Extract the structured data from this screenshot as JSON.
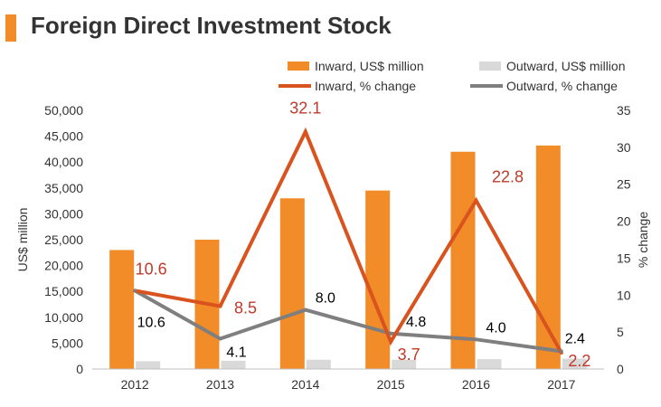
{
  "header": {
    "title": "Foreign Direct Investment Stock"
  },
  "colors": {
    "accent": "#F28C28",
    "inward_bar": "#F28C28",
    "outward_bar": "#D9D9D9",
    "inward_line": "#D9531E",
    "outward_line": "#7F7F7F",
    "inward_label": "#C0392B",
    "outward_label": "#000000",
    "axis_text": "#333333"
  },
  "chart_data": {
    "type": "bar",
    "categories": [
      "2012",
      "2013",
      "2014",
      "2015",
      "2016",
      "2017"
    ],
    "ylabel": "US$ million",
    "y2label": "% change",
    "ylim": [
      0,
      50000
    ],
    "y2lim": [
      0,
      35
    ],
    "yticks": [
      "0",
      "5,000",
      "10,000",
      "15,000",
      "20,000",
      "25,000",
      "30,000",
      "35,000",
      "40,000",
      "45,000",
      "50,000"
    ],
    "y2ticks": [
      "0",
      "5",
      "10",
      "15",
      "20",
      "25",
      "30",
      "35"
    ],
    "legend_position": "top",
    "grid": false,
    "series": [
      {
        "name": "Inward, US$ million",
        "kind": "bar",
        "axis": "left",
        "values": [
          23000,
          25000,
          33000,
          34500,
          42000,
          43200
        ]
      },
      {
        "name": "Outward, US$ million",
        "kind": "bar",
        "axis": "left",
        "values": [
          1500,
          1600,
          1800,
          1800,
          1900,
          2000
        ]
      },
      {
        "name": "Inward, % change",
        "kind": "line",
        "axis": "right",
        "values": [
          10.6,
          8.5,
          32.1,
          3.7,
          22.8,
          2.2
        ],
        "labels": [
          "10.6",
          "8.5",
          "32.1",
          "3.7",
          "22.8",
          "2.2"
        ]
      },
      {
        "name": "Outward, % change",
        "kind": "line",
        "axis": "right",
        "values": [
          10.6,
          4.1,
          8.0,
          4.8,
          4.0,
          2.4
        ],
        "labels": [
          "10.6",
          "4.1",
          "8.0",
          "4.8",
          "4.0",
          "2.4"
        ]
      }
    ]
  }
}
